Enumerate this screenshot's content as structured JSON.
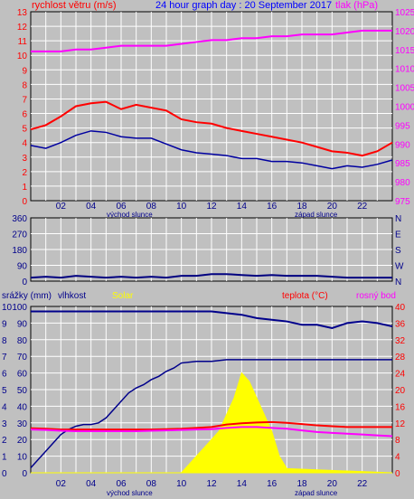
{
  "colors": {
    "background": "#c0c0c0",
    "plot_background": "#c0c0c0",
    "grid": "#ffffff",
    "frame": "#000000",
    "wind_speed": "#ff0000",
    "wind_avg": "#0000a0",
    "pressure": "#ff00ff",
    "humidity": "#00008b",
    "rain": "#00008b",
    "solar": "#ffff00",
    "temperature": "#ff0000",
    "dewpoint": "#ff00ff",
    "direction": "#000080"
  },
  "chart_data": [
    {
      "type": "line",
      "title": "24 hour graph day : 20 September 2017",
      "ylabel_left": "rychlost větru (m/s)",
      "ylabel_right": "tlak (hPa)",
      "x_ticks": [
        "02",
        "04",
        "06",
        "08",
        "10",
        "12",
        "14",
        "16",
        "18",
        "20",
        "22"
      ],
      "x_sublabels": [
        "východ slunce",
        "západ slunce"
      ],
      "ylim_left": [
        0,
        13
      ],
      "yticks_left": [
        "0",
        "1",
        "2",
        "3",
        "4",
        "5",
        "6",
        "7",
        "8",
        "9",
        "10",
        "11",
        "12",
        "13"
      ],
      "ylim_right": [
        975,
        1025
      ],
      "yticks_right": [
        "975",
        "980",
        "985",
        "990",
        "995",
        "1000",
        "1005",
        "1010",
        "1015",
        "1020",
        "1025"
      ],
      "series": [
        {
          "x": [
            0,
            1,
            2,
            3,
            4,
            5,
            6,
            7,
            8,
            9,
            10,
            11,
            12,
            13,
            14,
            15,
            16,
            17,
            18,
            19,
            20,
            21,
            22,
            23,
            24
          ],
          "values": [
            1014.5,
            1014.5,
            1014.5,
            1015,
            1015,
            1015.5,
            1016,
            1016,
            1016,
            1016,
            1016.5,
            1017,
            1017.5,
            1017.5,
            1018,
            1018,
            1018.5,
            1018.5,
            1019,
            1019,
            1019,
            1019.5,
            1020,
            1020,
            1020
          ]
        },
        {
          "x": [
            0,
            1,
            2,
            3,
            4,
            5,
            6,
            7,
            8,
            9,
            10,
            11,
            12,
            13,
            14,
            15,
            16,
            17,
            18,
            19,
            20,
            21,
            22,
            23,
            24
          ],
          "values": [
            4.9,
            5.2,
            5.8,
            6.5,
            6.7,
            6.8,
            6.3,
            6.6,
            6.4,
            6.2,
            5.6,
            5.4,
            5.3,
            5.0,
            4.8,
            4.6,
            4.4,
            4.2,
            4.0,
            3.7,
            3.4,
            3.3,
            3.1,
            3.4,
            4.0
          ]
        },
        {
          "x": [
            0,
            1,
            2,
            3,
            4,
            5,
            6,
            7,
            8,
            9,
            10,
            11,
            12,
            13,
            14,
            15,
            16,
            17,
            18,
            19,
            20,
            21,
            22,
            23,
            24
          ],
          "values": [
            3.8,
            3.6,
            4.0,
            4.5,
            4.8,
            4.7,
            4.4,
            4.3,
            4.3,
            3.9,
            3.5,
            3.3,
            3.2,
            3.1,
            2.9,
            2.9,
            2.7,
            2.7,
            2.6,
            2.4,
            2.2,
            2.4,
            2.3,
            2.5,
            2.8
          ]
        }
      ]
    },
    {
      "type": "scatter",
      "ylabel_right_ticks": [
        "N",
        "W",
        "S",
        "E",
        "N"
      ],
      "ylim": [
        0,
        360
      ],
      "yticks": [
        "0",
        "90",
        "180",
        "270",
        "360"
      ],
      "series": [
        {
          "x": [
            0,
            1,
            2,
            3,
            4,
            5,
            6,
            7,
            8,
            9,
            10,
            11,
            12,
            13,
            14,
            15,
            16,
            17,
            18,
            19,
            20,
            21,
            22,
            23,
            24
          ],
          "values": [
            20,
            25,
            20,
            30,
            25,
            20,
            25,
            20,
            25,
            20,
            30,
            30,
            40,
            40,
            35,
            30,
            35,
            30,
            30,
            30,
            25,
            20,
            20,
            20,
            20
          ]
        }
      ]
    },
    {
      "type": "line",
      "legend": [
        "srážky (mm)",
        "vlhkost",
        "Solar",
        "teplota (°C)",
        "rosný bod"
      ],
      "x_ticks": [
        "02",
        "04",
        "06",
        "08",
        "10",
        "12",
        "14",
        "16",
        "18",
        "20",
        "22"
      ],
      "x_sublabels": [
        "východ slunce",
        "západ slunce"
      ],
      "ylim_rain": [
        0,
        10
      ],
      "yticks_rain": [
        "0",
        "1",
        "2",
        "3",
        "4",
        "5",
        "6",
        "7",
        "8",
        "9",
        "10"
      ],
      "ylim_humidity": [
        0,
        100
      ],
      "yticks_humidity": [
        "0",
        "10",
        "20",
        "30",
        "40",
        "50",
        "60",
        "70",
        "80",
        "90",
        "100"
      ],
      "ylim_temp": [
        0,
        40
      ],
      "yticks_temp": [
        "0",
        "4",
        "8",
        "12",
        "16",
        "20",
        "24",
        "28",
        "32",
        "36",
        "40"
      ],
      "series": [
        {
          "name": "vlhkost",
          "x": [
            0,
            1,
            2,
            3,
            4,
            5,
            6,
            7,
            8,
            9,
            10,
            11,
            12,
            13,
            14,
            15,
            16,
            17,
            18,
            19,
            20,
            21,
            22,
            23,
            24
          ],
          "values": [
            97,
            97,
            97,
            97,
            97,
            97,
            97,
            97,
            97,
            97,
            97,
            97,
            97,
            96,
            95,
            93,
            92,
            91,
            89,
            89,
            87,
            90,
            91,
            90,
            88
          ]
        },
        {
          "name": "srážky (mm)",
          "x": [
            0,
            0.5,
            1,
            1.5,
            2,
            2.5,
            3,
            3.5,
            4,
            4.5,
            5,
            5.5,
            6,
            6.5,
            7,
            7.5,
            8,
            8.5,
            9,
            9.5,
            10,
            11,
            12,
            13,
            14,
            15,
            16,
            17,
            18,
            19,
            20,
            21,
            22,
            23,
            24
          ],
          "values": [
            0.3,
            0.8,
            1.3,
            1.8,
            2.3,
            2.6,
            2.8,
            2.9,
            2.9,
            3.0,
            3.3,
            3.8,
            4.3,
            4.8,
            5.1,
            5.3,
            5.6,
            5.8,
            6.1,
            6.3,
            6.6,
            6.7,
            6.7,
            6.8,
            6.8,
            6.8,
            6.8,
            6.8,
            6.8,
            6.8,
            6.8,
            6.8,
            6.8,
            6.8,
            6.8
          ]
        },
        {
          "name": "teplota (°C)",
          "x": [
            0,
            1,
            2,
            3,
            4,
            5,
            6,
            7,
            8,
            9,
            10,
            11,
            12,
            13,
            14,
            15,
            16,
            17,
            18,
            19,
            20,
            21,
            22,
            23,
            24
          ],
          "values": [
            10.7,
            10.6,
            10.4,
            10.4,
            10.4,
            10.4,
            10.4,
            10.4,
            10.4,
            10.5,
            10.6,
            10.8,
            11.0,
            11.6,
            11.9,
            12.1,
            12.2,
            12.0,
            11.7,
            11.4,
            11.2,
            11.0,
            11.0,
            11.0,
            11.0
          ]
        },
        {
          "name": "rosný bod",
          "x": [
            0,
            1,
            2,
            3,
            4,
            5,
            6,
            7,
            8,
            9,
            10,
            11,
            12,
            13,
            14,
            15,
            16,
            17,
            18,
            19,
            20,
            21,
            22,
            23,
            24
          ],
          "values": [
            10.4,
            10.3,
            10.1,
            10.0,
            10.0,
            10.0,
            10.0,
            10.0,
            10.1,
            10.2,
            10.3,
            10.4,
            10.5,
            10.8,
            11.0,
            11.0,
            10.8,
            10.6,
            10.2,
            9.8,
            9.6,
            9.4,
            9.2,
            9.0,
            8.8
          ]
        },
        {
          "name": "Solar",
          "x": [
            0,
            10,
            10.5,
            11,
            11.5,
            12,
            12.5,
            13,
            13.5,
            14,
            14.5,
            15,
            15.5,
            16,
            16.5,
            17,
            24
          ],
          "values": [
            0,
            0,
            2,
            4,
            6,
            8,
            10,
            14,
            18,
            24,
            22,
            18,
            14,
            10,
            4,
            1,
            0
          ]
        }
      ]
    }
  ]
}
